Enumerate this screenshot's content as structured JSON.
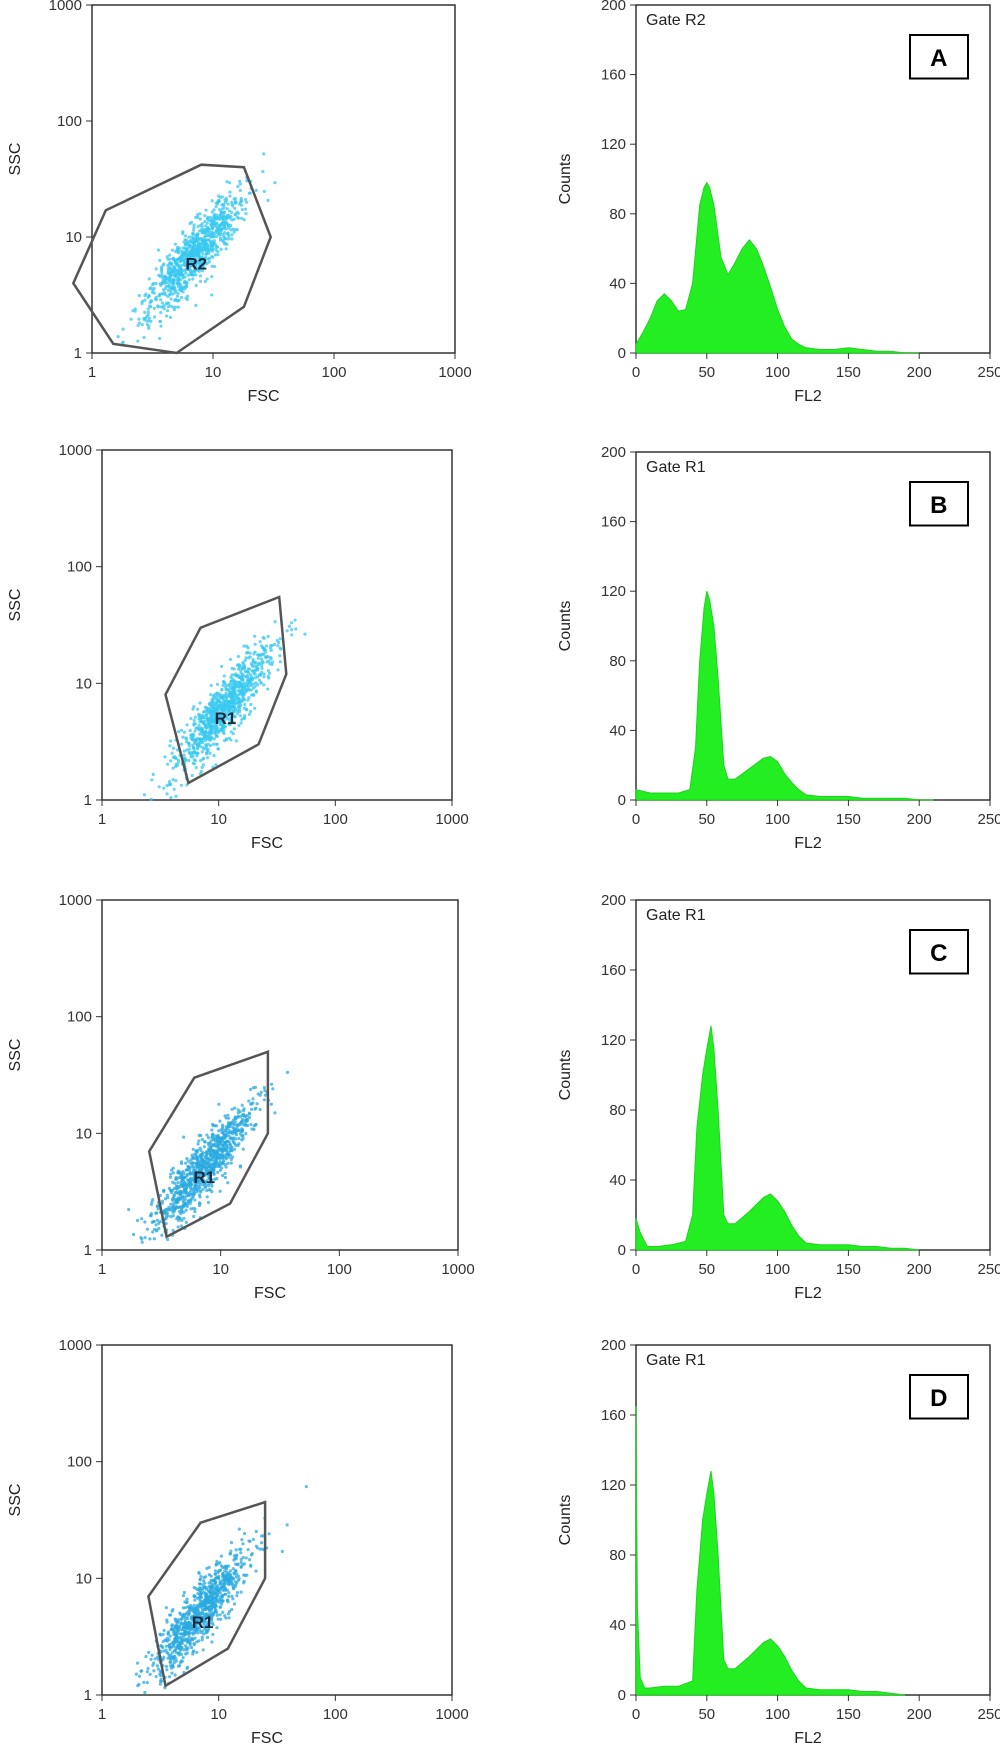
{
  "chart_data": [
    {
      "panel": "A",
      "type": "scatter",
      "xlabel": "FSC",
      "ylabel": "SSC",
      "xscale": "log",
      "yscale": "log",
      "xlim": [
        1,
        1000
      ],
      "ylim": [
        1,
        1000
      ],
      "xticks": [
        "1",
        "10",
        "100",
        "1000"
      ],
      "yticks": [
        "1",
        "10",
        "100",
        "1000"
      ],
      "region": {
        "label": "R2",
        "polygon": [
          [
            0.7,
            4
          ],
          [
            1.3,
            17
          ],
          [
            8,
            42
          ],
          [
            18,
            40
          ],
          [
            30,
            10
          ],
          [
            18,
            2.5
          ],
          [
            5,
            1
          ],
          [
            1.5,
            1.2
          ]
        ]
      },
      "cloud": {
        "center": [
          7,
          7
        ],
        "color": "#38c8f0"
      }
    },
    {
      "panel": "A",
      "type": "area",
      "gate_label": "Gate R2",
      "xlabel": "FL2",
      "ylabel": "Counts",
      "xlim": [
        0,
        250
      ],
      "ylim": [
        0,
        200
      ],
      "xticks": [
        "0",
        "50",
        "100",
        "150",
        "200",
        "250"
      ],
      "yticks": [
        "0",
        "40",
        "80",
        "120",
        "160",
        "200"
      ],
      "x": [
        0,
        5,
        10,
        15,
        20,
        25,
        30,
        35,
        40,
        45,
        48,
        50,
        52,
        55,
        60,
        65,
        70,
        75,
        80,
        85,
        90,
        95,
        100,
        105,
        110,
        115,
        120,
        130,
        140,
        150,
        160,
        170,
        180,
        190,
        200
      ],
      "y": [
        5,
        12,
        20,
        30,
        34,
        30,
        24,
        25,
        40,
        85,
        95,
        98,
        95,
        85,
        55,
        45,
        52,
        60,
        65,
        60,
        50,
        38,
        25,
        15,
        8,
        5,
        3,
        2,
        2,
        3,
        2,
        1,
        1,
        0,
        0
      ],
      "color": "#22ee22"
    },
    {
      "panel": "B",
      "type": "scatter",
      "xlabel": "FSC",
      "ylabel": "SSC",
      "xscale": "log",
      "yscale": "log",
      "xlim": [
        1,
        1000
      ],
      "ylim": [
        1,
        1000
      ],
      "xticks": [
        "1",
        "10",
        "100",
        "1000"
      ],
      "yticks": [
        "1",
        "10",
        "100",
        "1000"
      ],
      "region": {
        "label": "R1",
        "polygon": [
          [
            3.5,
            8
          ],
          [
            7,
            30
          ],
          [
            33,
            55
          ],
          [
            38,
            12
          ],
          [
            22,
            3
          ],
          [
            5.5,
            1.4
          ]
        ]
      },
      "cloud": {
        "center": [
          11,
          6
        ],
        "color": "#38c8f0"
      }
    },
    {
      "panel": "B",
      "type": "area",
      "gate_label": "Gate R1",
      "xlabel": "FL2",
      "ylabel": "Counts",
      "xlim": [
        0,
        250
      ],
      "ylim": [
        0,
        200
      ],
      "xticks": [
        "0",
        "50",
        "100",
        "150",
        "200",
        "250"
      ],
      "yticks": [
        "0",
        "40",
        "80",
        "120",
        "160",
        "200"
      ],
      "x": [
        0,
        5,
        10,
        20,
        30,
        38,
        42,
        45,
        48,
        50,
        52,
        55,
        58,
        62,
        65,
        70,
        80,
        90,
        95,
        100,
        105,
        110,
        115,
        120,
        130,
        140,
        150,
        160,
        170,
        180,
        190,
        200,
        210
      ],
      "y": [
        6,
        5,
        4,
        4,
        4,
        6,
        30,
        80,
        110,
        120,
        115,
        100,
        70,
        20,
        12,
        12,
        18,
        24,
        25,
        22,
        15,
        10,
        6,
        3,
        2,
        2,
        2,
        1,
        1,
        1,
        1,
        0,
        0
      ],
      "color": "#22ee22"
    },
    {
      "panel": "C",
      "type": "scatter",
      "xlabel": "FSC",
      "ylabel": "SSC",
      "xscale": "log",
      "yscale": "log",
      "xlim": [
        1,
        1000
      ],
      "ylim": [
        1,
        1000
      ],
      "xticks": [
        "1",
        "10",
        "100",
        "1000"
      ],
      "yticks": [
        "1",
        "10",
        "100",
        "1000"
      ],
      "region": {
        "label": "R1",
        "polygon": [
          [
            2.5,
            7
          ],
          [
            6,
            30
          ],
          [
            25,
            50
          ],
          [
            25,
            10
          ],
          [
            12,
            2.5
          ],
          [
            3.5,
            1.3
          ]
        ]
      },
      "cloud": {
        "center": [
          7,
          5
        ],
        "color": "#2aa9e0"
      }
    },
    {
      "panel": "C",
      "type": "area",
      "gate_label": "Gate R1",
      "xlabel": "FL2",
      "ylabel": "Counts",
      "xlim": [
        0,
        250
      ],
      "ylim": [
        0,
        200
      ],
      "xticks": [
        "0",
        "50",
        "100",
        "150",
        "200",
        "250"
      ],
      "yticks": [
        "0",
        "40",
        "80",
        "120",
        "160",
        "200"
      ],
      "x": [
        0,
        3,
        8,
        15,
        25,
        35,
        40,
        43,
        47,
        50,
        53,
        55,
        58,
        62,
        65,
        70,
        80,
        90,
        95,
        100,
        105,
        110,
        115,
        120,
        130,
        140,
        150,
        160,
        170,
        180,
        190,
        200
      ],
      "y": [
        18,
        10,
        2,
        2,
        3,
        5,
        20,
        70,
        100,
        115,
        128,
        115,
        80,
        20,
        15,
        15,
        22,
        30,
        32,
        28,
        22,
        14,
        8,
        4,
        3,
        3,
        3,
        2,
        2,
        1,
        1,
        0
      ],
      "color": "#22ee22"
    },
    {
      "panel": "D",
      "type": "scatter",
      "xlabel": "FSC",
      "ylabel": "SSC",
      "xscale": "log",
      "yscale": "log",
      "xlim": [
        1,
        1000
      ],
      "ylim": [
        1,
        1000
      ],
      "xticks": [
        "1",
        "10",
        "100",
        "1000"
      ],
      "yticks": [
        "1",
        "10",
        "100",
        "1000"
      ],
      "region": {
        "label": "R1",
        "polygon": [
          [
            2.5,
            7
          ],
          [
            7,
            30
          ],
          [
            25,
            45
          ],
          [
            25,
            10
          ],
          [
            12,
            2.5
          ],
          [
            3.5,
            1.2
          ]
        ]
      },
      "cloud": {
        "center": [
          7,
          5
        ],
        "color": "#2aa9e0"
      }
    },
    {
      "panel": "D",
      "type": "area",
      "gate_label": "Gate R1",
      "xlabel": "FL2",
      "ylabel": "Counts",
      "xlim": [
        0,
        250
      ],
      "ylim": [
        0,
        200
      ],
      "xticks": [
        "0",
        "50",
        "100",
        "150",
        "200",
        "250"
      ],
      "yticks": [
        "0",
        "40",
        "80",
        "120",
        "160",
        "200"
      ],
      "x": [
        0,
        1,
        3,
        6,
        10,
        20,
        30,
        40,
        43,
        47,
        50,
        53,
        55,
        58,
        62,
        65,
        70,
        80,
        90,
        95,
        100,
        105,
        110,
        115,
        120,
        130,
        140,
        150,
        160,
        170,
        180,
        190
      ],
      "y": [
        165,
        50,
        10,
        4,
        4,
        5,
        5,
        8,
        60,
        100,
        115,
        128,
        115,
        80,
        20,
        15,
        15,
        22,
        30,
        32,
        28,
        22,
        14,
        8,
        4,
        3,
        3,
        3,
        2,
        2,
        1,
        0
      ],
      "color": "#22ee22"
    }
  ]
}
